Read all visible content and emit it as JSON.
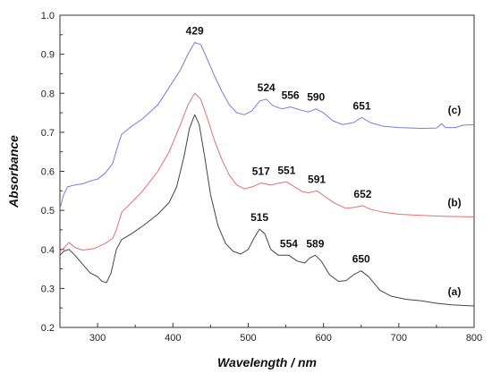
{
  "chart_data": {
    "type": "line",
    "xlabel": "Wavelength / nm",
    "ylabel": "Absorbance",
    "xlim": [
      250,
      800
    ],
    "ylim": [
      0.2,
      1.0
    ],
    "xticks": [
      300,
      400,
      500,
      600,
      700,
      800
    ],
    "yticks": [
      0.2,
      0.3,
      0.4,
      0.5,
      0.6,
      0.7,
      0.8,
      0.9,
      1.0
    ],
    "grid": false,
    "series": [
      {
        "name": "(a)",
        "color": "#444444",
        "points": [
          [
            250,
            0.385
          ],
          [
            255,
            0.395
          ],
          [
            262,
            0.4
          ],
          [
            270,
            0.385
          ],
          [
            280,
            0.362
          ],
          [
            290,
            0.34
          ],
          [
            300,
            0.33
          ],
          [
            306,
            0.318
          ],
          [
            312,
            0.315
          ],
          [
            318,
            0.34
          ],
          [
            325,
            0.4
          ],
          [
            332,
            0.425
          ],
          [
            345,
            0.44
          ],
          [
            360,
            0.46
          ],
          [
            380,
            0.49
          ],
          [
            395,
            0.52
          ],
          [
            405,
            0.56
          ],
          [
            415,
            0.64
          ],
          [
            422,
            0.71
          ],
          [
            429,
            0.745
          ],
          [
            435,
            0.72
          ],
          [
            442,
            0.64
          ],
          [
            450,
            0.54
          ],
          [
            460,
            0.46
          ],
          [
            470,
            0.415
          ],
          [
            480,
            0.395
          ],
          [
            490,
            0.388
          ],
          [
            500,
            0.4
          ],
          [
            508,
            0.43
          ],
          [
            515,
            0.452
          ],
          [
            522,
            0.44
          ],
          [
            530,
            0.4
          ],
          [
            540,
            0.385
          ],
          [
            554,
            0.385
          ],
          [
            565,
            0.37
          ],
          [
            575,
            0.365
          ],
          [
            582,
            0.378
          ],
          [
            589,
            0.385
          ],
          [
            597,
            0.37
          ],
          [
            608,
            0.335
          ],
          [
            620,
            0.318
          ],
          [
            630,
            0.32
          ],
          [
            640,
            0.335
          ],
          [
            650,
            0.345
          ],
          [
            660,
            0.33
          ],
          [
            675,
            0.295
          ],
          [
            690,
            0.28
          ],
          [
            710,
            0.272
          ],
          [
            730,
            0.268
          ],
          [
            750,
            0.262
          ],
          [
            770,
            0.258
          ],
          [
            790,
            0.256
          ],
          [
            800,
            0.255
          ]
        ]
      },
      {
        "name": "(b)",
        "color": "#e07070",
        "points": [
          [
            250,
            0.395
          ],
          [
            256,
            0.405
          ],
          [
            262,
            0.418
          ],
          [
            270,
            0.405
          ],
          [
            280,
            0.398
          ],
          [
            295,
            0.402
          ],
          [
            310,
            0.415
          ],
          [
            320,
            0.428
          ],
          [
            325,
            0.45
          ],
          [
            332,
            0.495
          ],
          [
            345,
            0.52
          ],
          [
            360,
            0.55
          ],
          [
            380,
            0.6
          ],
          [
            395,
            0.65
          ],
          [
            410,
            0.72
          ],
          [
            420,
            0.77
          ],
          [
            429,
            0.8
          ],
          [
            437,
            0.785
          ],
          [
            445,
            0.74
          ],
          [
            455,
            0.68
          ],
          [
            465,
            0.63
          ],
          [
            475,
            0.59
          ],
          [
            485,
            0.565
          ],
          [
            495,
            0.555
          ],
          [
            505,
            0.56
          ],
          [
            517,
            0.57
          ],
          [
            530,
            0.565
          ],
          [
            541,
            0.57
          ],
          [
            551,
            0.573
          ],
          [
            560,
            0.562
          ],
          [
            572,
            0.548
          ],
          [
            580,
            0.545
          ],
          [
            591,
            0.55
          ],
          [
            600,
            0.538
          ],
          [
            615,
            0.518
          ],
          [
            630,
            0.505
          ],
          [
            642,
            0.508
          ],
          [
            652,
            0.512
          ],
          [
            662,
            0.503
          ],
          [
            680,
            0.495
          ],
          [
            700,
            0.49
          ],
          [
            730,
            0.487
          ],
          [
            760,
            0.485
          ],
          [
            800,
            0.483
          ]
        ]
      },
      {
        "name": "(c)",
        "color": "#7b7bd8",
        "points": [
          [
            250,
            0.505
          ],
          [
            255,
            0.54
          ],
          [
            260,
            0.56
          ],
          [
            270,
            0.565
          ],
          [
            280,
            0.568
          ],
          [
            290,
            0.575
          ],
          [
            300,
            0.58
          ],
          [
            310,
            0.595
          ],
          [
            320,
            0.62
          ],
          [
            326,
            0.66
          ],
          [
            332,
            0.695
          ],
          [
            345,
            0.715
          ],
          [
            360,
            0.735
          ],
          [
            380,
            0.77
          ],
          [
            395,
            0.815
          ],
          [
            410,
            0.86
          ],
          [
            420,
            0.9
          ],
          [
            429,
            0.93
          ],
          [
            437,
            0.925
          ],
          [
            445,
            0.89
          ],
          [
            455,
            0.845
          ],
          [
            465,
            0.805
          ],
          [
            475,
            0.77
          ],
          [
            485,
            0.75
          ],
          [
            495,
            0.745
          ],
          [
            505,
            0.755
          ],
          [
            515,
            0.78
          ],
          [
            524,
            0.785
          ],
          [
            533,
            0.768
          ],
          [
            545,
            0.76
          ],
          [
            556,
            0.765
          ],
          [
            568,
            0.758
          ],
          [
            580,
            0.752
          ],
          [
            590,
            0.76
          ],
          [
            600,
            0.75
          ],
          [
            612,
            0.73
          ],
          [
            625,
            0.72
          ],
          [
            640,
            0.725
          ],
          [
            651,
            0.738
          ],
          [
            662,
            0.725
          ],
          [
            680,
            0.715
          ],
          [
            700,
            0.712
          ],
          [
            730,
            0.71
          ],
          [
            750,
            0.711
          ],
          [
            757,
            0.722
          ],
          [
            762,
            0.712
          ],
          [
            775,
            0.712
          ],
          [
            785,
            0.718
          ],
          [
            800,
            0.72
          ]
        ]
      }
    ],
    "peak_annotations": [
      {
        "text": "429",
        "x": 429,
        "y": 0.93
      },
      {
        "text": "524",
        "x": 524,
        "y": 0.785
      },
      {
        "text": "556",
        "x": 556,
        "y": 0.765
      },
      {
        "text": "590",
        "x": 590,
        "y": 0.76
      },
      {
        "text": "651",
        "x": 651,
        "y": 0.738
      },
      {
        "text": "517",
        "x": 517,
        "y": 0.57
      },
      {
        "text": "551",
        "x": 551,
        "y": 0.573
      },
      {
        "text": "591",
        "x": 591,
        "y": 0.55
      },
      {
        "text": "652",
        "x": 652,
        "y": 0.512
      },
      {
        "text": "515",
        "x": 515,
        "y": 0.452
      },
      {
        "text": "554",
        "x": 554,
        "y": 0.385
      },
      {
        "text": "589",
        "x": 589,
        "y": 0.385
      },
      {
        "text": "650",
        "x": 650,
        "y": 0.345
      }
    ]
  }
}
